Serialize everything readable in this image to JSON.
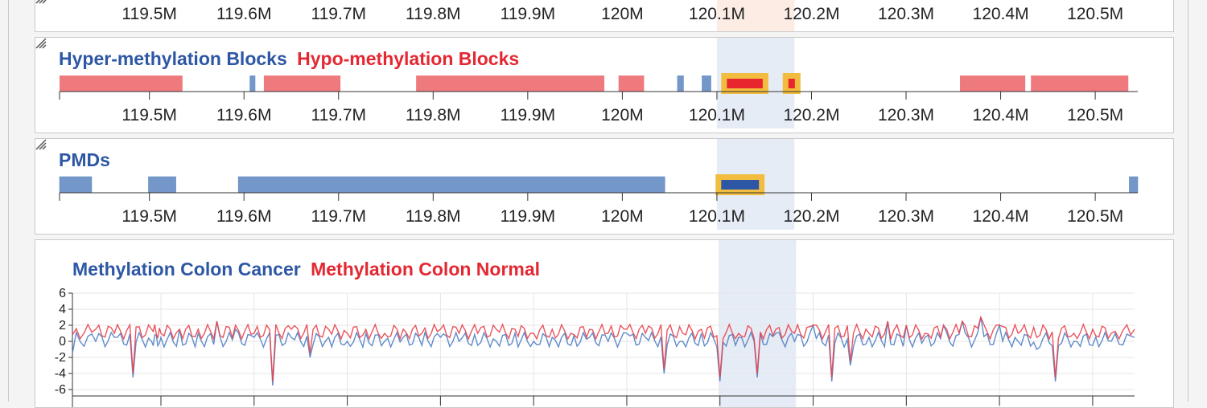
{
  "top_track": {
    "tick_labels": [
      "119.5M",
      "119.6M",
      "119.7M",
      "119.8M",
      "119.9M",
      "120M",
      "120.1M",
      "120.2M",
      "120.3M",
      "120.4M",
      "120.5M"
    ]
  },
  "blocks_track": {
    "title_hyper": "Hyper-methylation Blocks",
    "title_hypo": "Hypo-methylation Blocks",
    "tick_labels": [
      "119.5M",
      "119.6M",
      "119.7M",
      "119.8M",
      "119.9M",
      "120M",
      "120.1M",
      "120.2M",
      "120.3M",
      "120.4M",
      "120.5M"
    ],
    "hypo_blocks": [
      [
        119.405,
        119.535
      ],
      [
        119.621,
        119.702
      ],
      [
        119.782,
        119.981
      ],
      [
        119.996,
        120.023
      ],
      [
        120.357,
        120.426
      ],
      [
        120.432,
        120.535
      ]
    ],
    "hyper_blocks": [
      [
        119.606,
        119.612
      ],
      [
        120.058,
        120.065
      ],
      [
        120.084,
        120.094
      ]
    ],
    "selected_hypo_blocks": [
      [
        120.108,
        120.151
      ],
      [
        120.173,
        120.185
      ]
    ],
    "colors": {
      "hypo": "#ef7a7e",
      "hyper": "#7297c8",
      "selected_red": "#e8262e",
      "highlight": "#f2bd3e"
    }
  },
  "pmd_track": {
    "title": "PMDs",
    "tick_labels": [
      "119.5M",
      "119.6M",
      "119.7M",
      "119.8M",
      "119.9M",
      "120M",
      "120.1M",
      "120.2M",
      "120.3M",
      "120.4M",
      "120.5M"
    ],
    "blocks": [
      [
        119.405,
        119.439
      ],
      [
        119.499,
        119.528
      ],
      [
        119.594,
        120.045
      ],
      [
        120.536,
        120.545
      ]
    ],
    "selected_blocks": [
      [
        120.102,
        120.147
      ]
    ],
    "colors": {
      "pmd": "#7297c8",
      "selected": "#2d57a4",
      "highlight": "#f2bd3e"
    }
  },
  "methylation_track": {
    "title_cancer": "Methylation Colon Cancer",
    "title_normal": "Methylation Colon Normal",
    "y_tick_labels": [
      "6",
      "4",
      "2",
      "0",
      "-2",
      "-4",
      "-6"
    ],
    "colors": {
      "cancer": "#4f7fc4",
      "normal": "#e8424c"
    }
  },
  "chart_data": {
    "type": "line",
    "x_range_M": [
      119.405,
      120.545
    ],
    "ylim": [
      -6,
      6
    ],
    "x": [
      119.405,
      119.43,
      119.45,
      119.47,
      119.49,
      119.5,
      119.52,
      119.54,
      119.56,
      119.58,
      119.6,
      119.62,
      119.64,
      119.66,
      119.68,
      119.7,
      119.72,
      119.74,
      119.76,
      119.78,
      119.8,
      119.82,
      119.84,
      119.86,
      119.88,
      119.9,
      119.92,
      119.94,
      119.96,
      119.98,
      120.0,
      120.02,
      120.04,
      120.06,
      120.08,
      120.1,
      120.12,
      120.14,
      120.16,
      120.18,
      120.2,
      120.22,
      120.24,
      120.26,
      120.28,
      120.3,
      120.32,
      120.34,
      120.36,
      120.38,
      120.4,
      120.42,
      120.44,
      120.46,
      120.48,
      120.5,
      120.52,
      120.545
    ],
    "series": [
      {
        "name": "Methylation Colon Cancer",
        "values": [
          -1.5,
          0,
          0.5,
          -4.5,
          0,
          0.5,
          1.5,
          1,
          2.5,
          1.5,
          0.5,
          -5.5,
          0.5,
          -2,
          0.5,
          0,
          1,
          0,
          0.5,
          -0.5,
          0.5,
          0,
          -0.5,
          0,
          1,
          0,
          0.5,
          -0.5,
          0.5,
          0,
          1,
          0.5,
          -4,
          0,
          1,
          -5,
          0.5,
          -4.5,
          1,
          0,
          2,
          -5,
          -3,
          0.5,
          2.5,
          2,
          0.5,
          2,
          2.5,
          3,
          2,
          0,
          -1,
          -5,
          0,
          -0.5,
          0,
          0.5
        ]
      },
      {
        "name": "Methylation Colon Normal",
        "values": [
          0.8,
          1.5,
          1,
          -4,
          1.5,
          1,
          1.5,
          1.5,
          2.5,
          2,
          1,
          -5,
          1.5,
          -1.5,
          1.5,
          1,
          1.5,
          1,
          1.5,
          1,
          1.5,
          1,
          1,
          1.5,
          1.5,
          1,
          1.5,
          1,
          1.5,
          1,
          1.5,
          1,
          -3.5,
          1,
          1.5,
          -4.5,
          1,
          -4,
          1.5,
          1,
          2,
          -4.5,
          -2.5,
          1,
          2.5,
          2,
          1,
          2,
          2.5,
          3,
          2,
          1,
          0.5,
          -4.5,
          1,
          1.5,
          1,
          1.5
        ]
      }
    ]
  }
}
